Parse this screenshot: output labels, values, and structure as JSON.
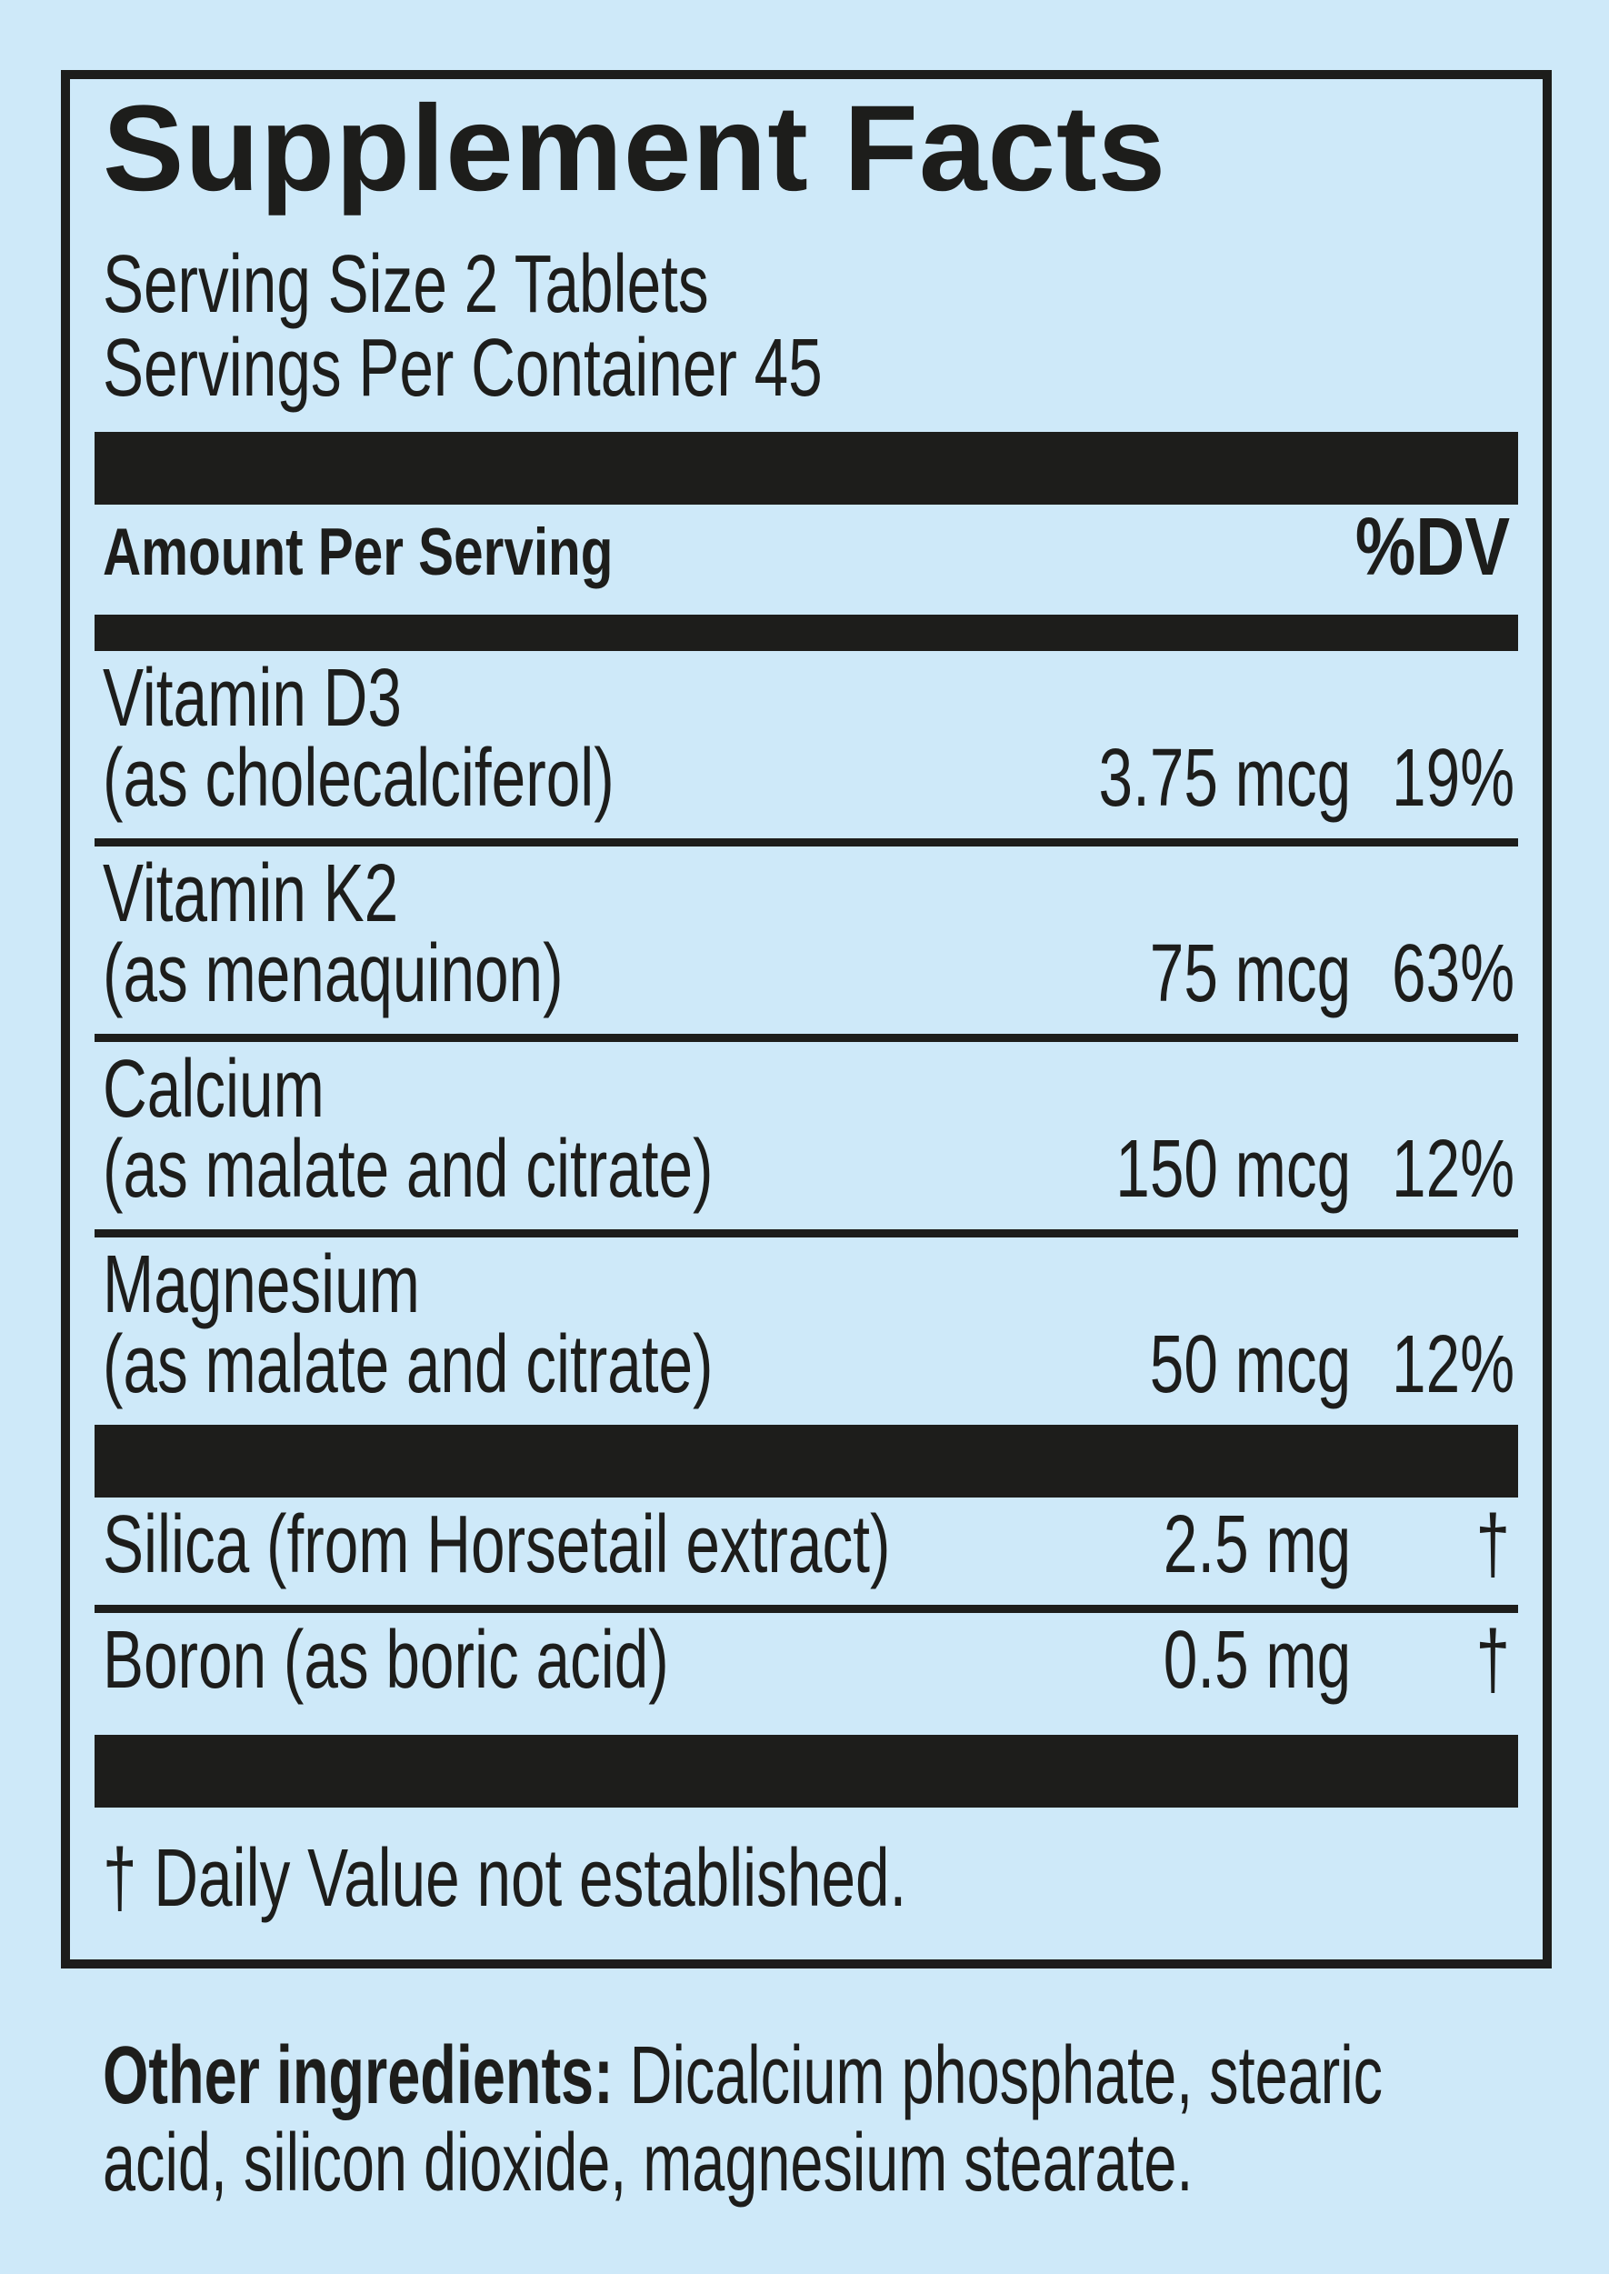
{
  "label": {
    "title": "Supplement Facts",
    "serving_size": "Serving Size 2 Tablets",
    "servings_per_container": "Servings Per Container 45",
    "header": {
      "amount_per_serving": "Amount Per Serving",
      "dv": "%DV"
    },
    "nutrients": [
      {
        "name": "Vitamin D3",
        "detail": "(as cholecalciferol)",
        "amount": "3.75 mcg",
        "dv": "19%"
      },
      {
        "name": "Vitamin K2",
        "detail": "(as menaquinon)",
        "amount": "75 mcg",
        "dv": "63%"
      },
      {
        "name": "Calcium",
        "detail": "(as malate and citrate)",
        "amount": "150 mcg",
        "dv": "12%"
      },
      {
        "name": "Magnesium",
        "detail": "(as malate and citrate)",
        "amount": "50 mcg",
        "dv": "12%"
      }
    ],
    "extras": [
      {
        "name": "Silica (from Horsetail extract)",
        "amount": "2.5 mg",
        "dv": "†"
      },
      {
        "name": "Boron (as boric acid)",
        "amount": "0.5 mg",
        "dv": "†"
      }
    ],
    "footnote": "† Daily Value not established.",
    "other_ingredients": {
      "label": "Other ingredients: ",
      "text": "Dicalcium phosphate, stearic acid, silicon dioxide, magnesium stearate."
    },
    "colors": {
      "background": "#cee9f9",
      "ink": "#1d1d1b"
    }
  }
}
